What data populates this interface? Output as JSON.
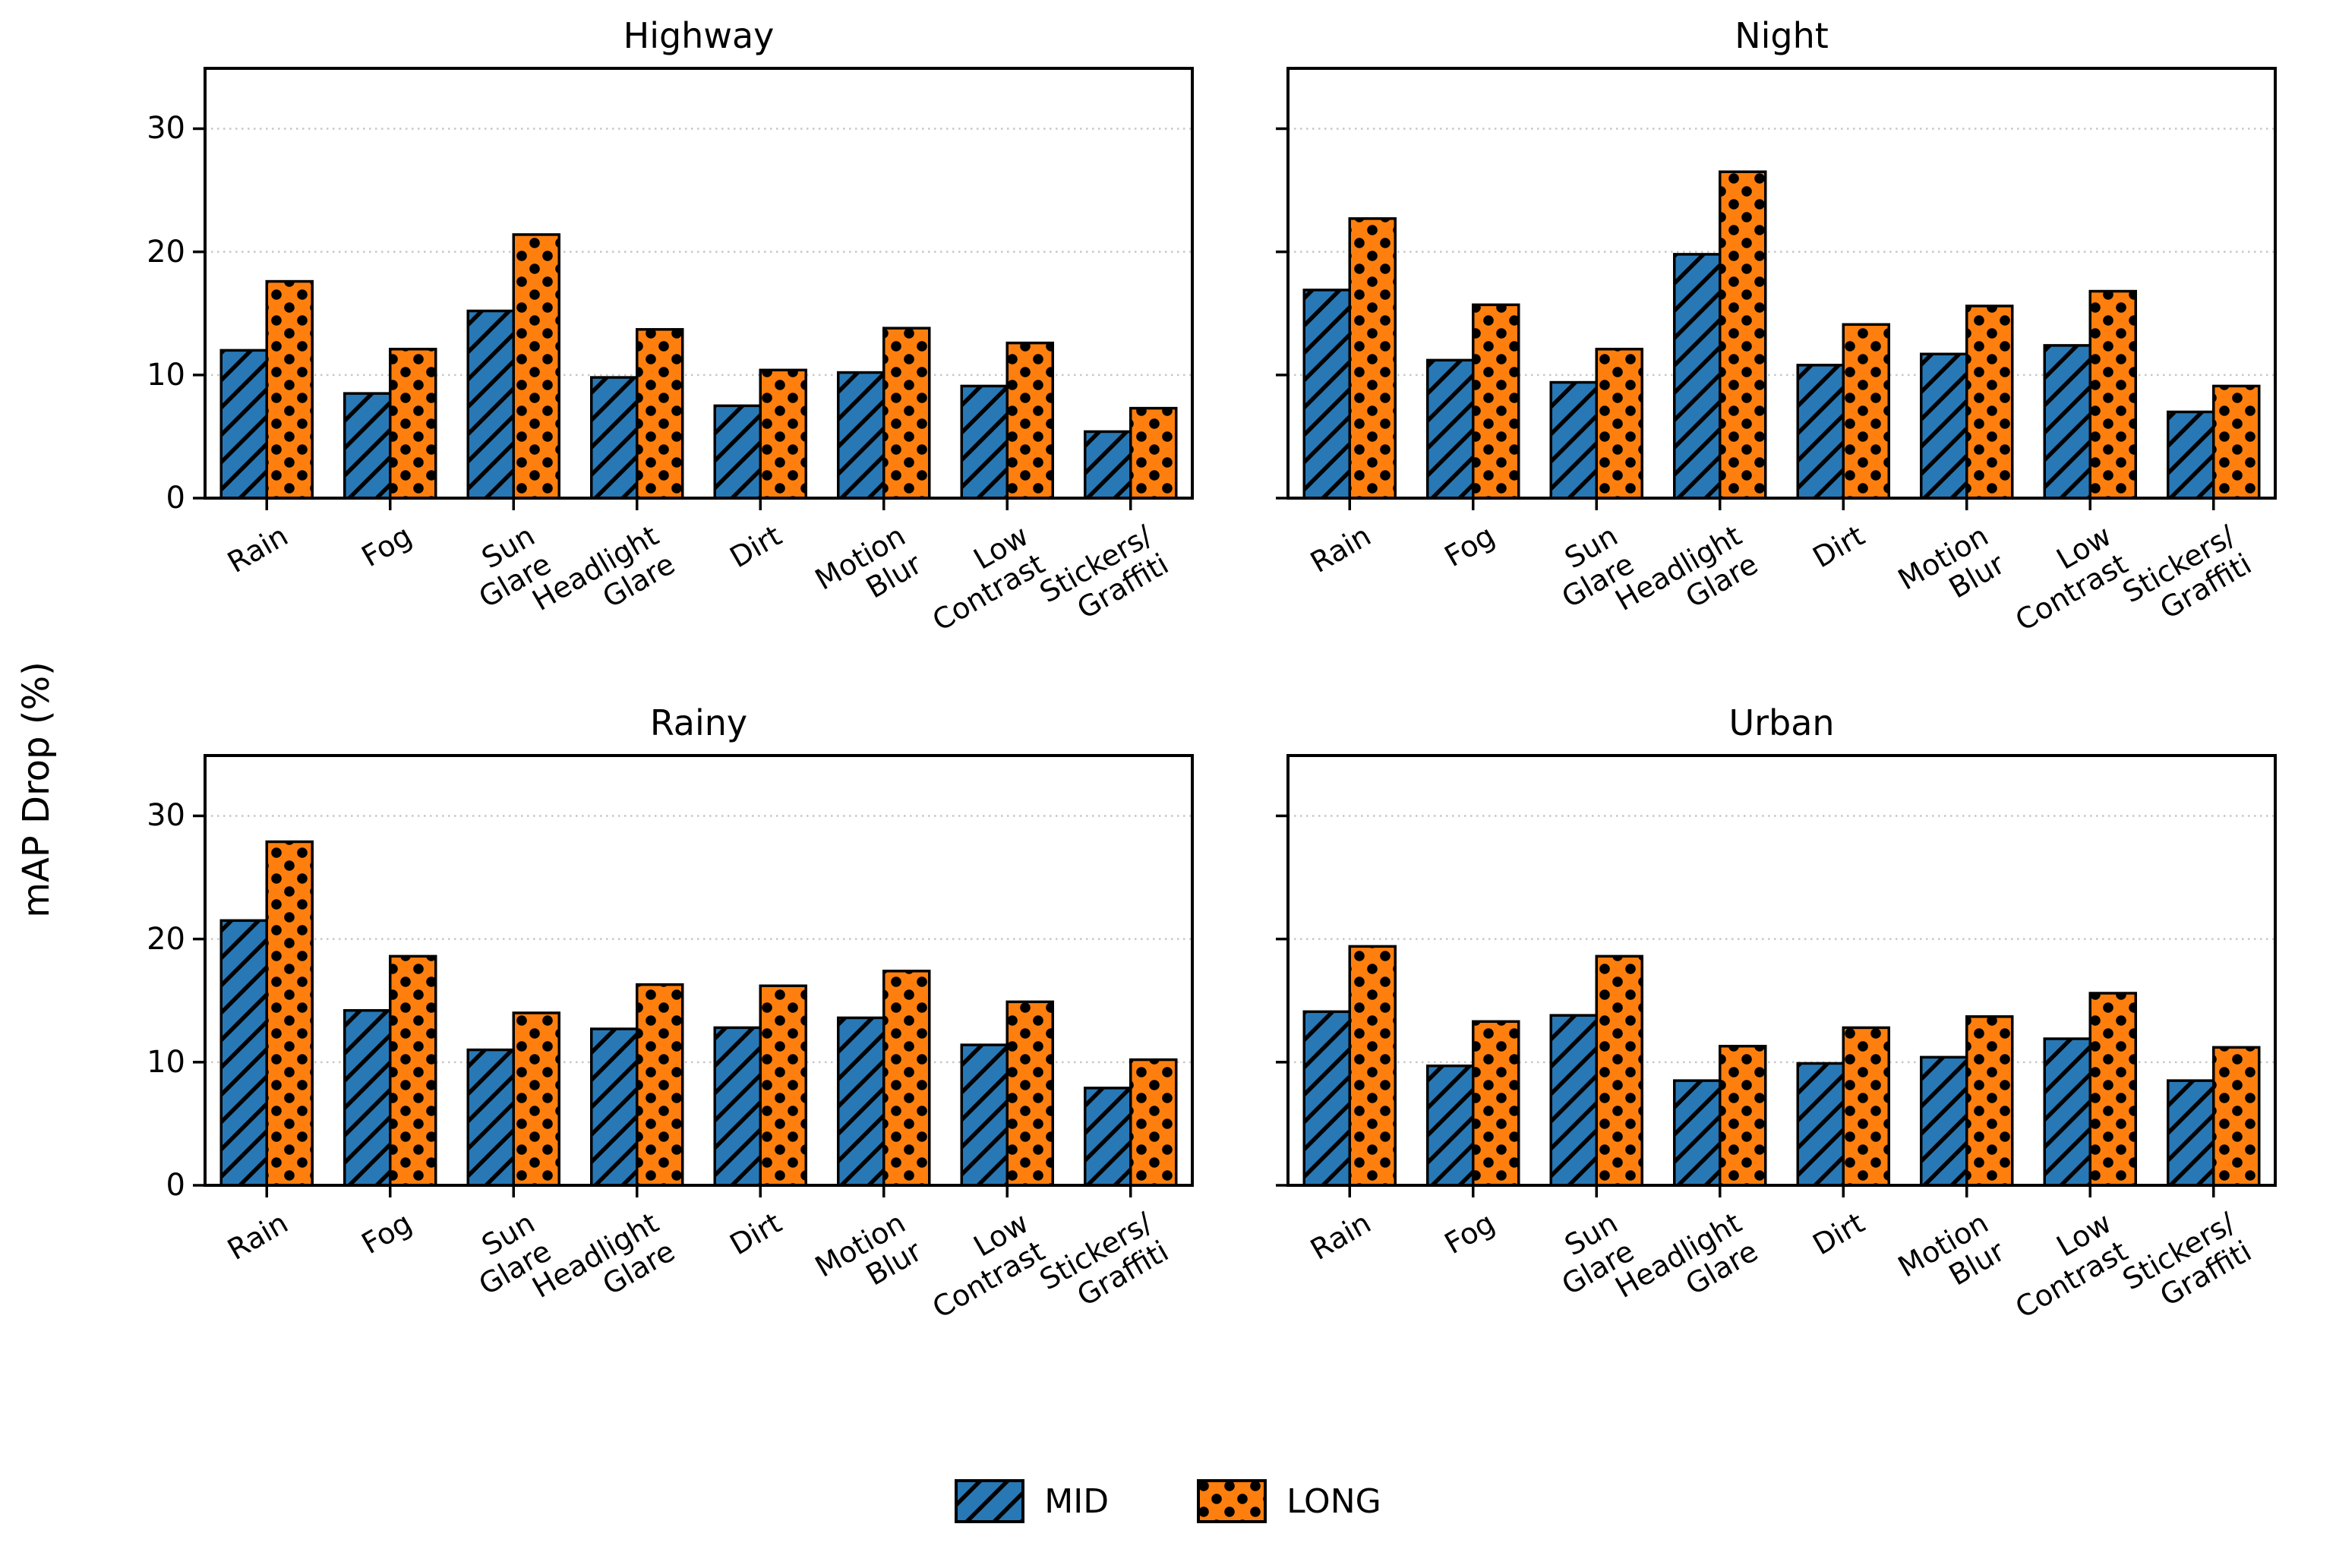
{
  "figure": {
    "background": "#ffffff",
    "y_axis_label": "mAP Drop (%)"
  },
  "chart_data": {
    "type": "bar",
    "categories": [
      "Rain",
      "Fog",
      "Sun\nGlare",
      "Headlight\nGlare",
      "Dirt",
      "Motion\nBlur",
      "Low\nContrast",
      "Stickers/\nGraffiti"
    ],
    "ylabel": "mAP Drop (%)",
    "yticks": [
      0,
      10,
      20,
      30
    ],
    "ylim": [
      0,
      34.9
    ],
    "grid": "horizontal dotted gridlines at 10, 20, 30",
    "legend_position": "bottom center",
    "legend": [
      {
        "name": "MID",
        "color": "#2878b5",
        "hatch": "/",
        "edge_color": "#000000"
      },
      {
        "name": "LONG",
        "color": "#ff7f0e",
        "hatch": ".",
        "edge_color": "#000000"
      }
    ],
    "subplots": [
      {
        "title": "Highway",
        "series": [
          {
            "name": "MID",
            "values": [
              12.0,
              8.5,
              15.2,
              9.8,
              7.5,
              10.2,
              9.1,
              5.4
            ]
          },
          {
            "name": "LONG",
            "values": [
              17.6,
              12.1,
              21.4,
              13.7,
              10.4,
              13.8,
              12.6,
              7.3
            ]
          }
        ]
      },
      {
        "title": "Night",
        "series": [
          {
            "name": "MID",
            "values": [
              16.9,
              11.2,
              9.4,
              19.8,
              10.8,
              11.7,
              12.4,
              7.0
            ]
          },
          {
            "name": "LONG",
            "values": [
              22.7,
              15.7,
              12.1,
              26.5,
              14.1,
              15.6,
              16.8,
              9.1
            ]
          }
        ]
      },
      {
        "title": "Rainy",
        "series": [
          {
            "name": "MID",
            "values": [
              21.5,
              14.2,
              11.0,
              12.7,
              12.8,
              13.6,
              11.4,
              7.9
            ]
          },
          {
            "name": "LONG",
            "values": [
              27.9,
              18.6,
              14.0,
              16.3,
              16.2,
              17.4,
              14.9,
              10.2
            ]
          }
        ]
      },
      {
        "title": "Urban",
        "series": [
          {
            "name": "MID",
            "values": [
              14.1,
              9.7,
              13.8,
              8.5,
              9.9,
              10.4,
              11.9,
              8.5
            ]
          },
          {
            "name": "LONG",
            "values": [
              19.4,
              13.3,
              18.6,
              11.3,
              12.8,
              13.7,
              15.6,
              11.2
            ]
          }
        ]
      }
    ]
  }
}
